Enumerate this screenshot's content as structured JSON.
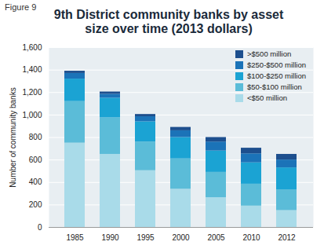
{
  "chart_data": {
    "type": "bar",
    "title": "9th District community banks by asset size over time (2013 dollars)",
    "annotations": [
      "Figure 9"
    ],
    "stacked": true,
    "grid": true,
    "legend": "top-right",
    "y_label": "Number of community banks",
    "categories": [
      1985,
      1990,
      1995,
      2000,
      2005,
      2010,
      2012
    ],
    "series": [
      {
        "name": "<$50 million",
        "color": "#a9dbe9",
        "values": [
          750,
          650,
          505,
          340,
          265,
          190,
          150
        ]
      },
      {
        "name": "$50-$100 million",
        "color": "#5bbcd8",
        "values": [
          370,
          325,
          255,
          270,
          225,
          195,
          185
        ]
      },
      {
        "name": "$100-$250 million",
        "color": "#1ba3d3",
        "values": [
          200,
          175,
          180,
          190,
          190,
          190,
          195
        ]
      },
      {
        "name": "$250-$500 million",
        "color": "#1b73b8",
        "values": [
          50,
          35,
          45,
          60,
          80,
          80,
          70
        ]
      },
      {
        "name": ">$500 million",
        "color": "#1d4f8e",
        "values": [
          20,
          20,
          20,
          30,
          40,
          50,
          50
        ]
      }
    ],
    "ylim": [
      0,
      1600
    ],
    "yticks": [
      0,
      200,
      400,
      600,
      800,
      {
        "value": 1000,
        "label": "1,000"
      },
      {
        "value": 1200,
        "label": "1,200"
      },
      {
        "value": 1400,
        "label": "1,400"
      },
      {
        "value": 1600,
        "label": "1,600"
      }
    ]
  }
}
